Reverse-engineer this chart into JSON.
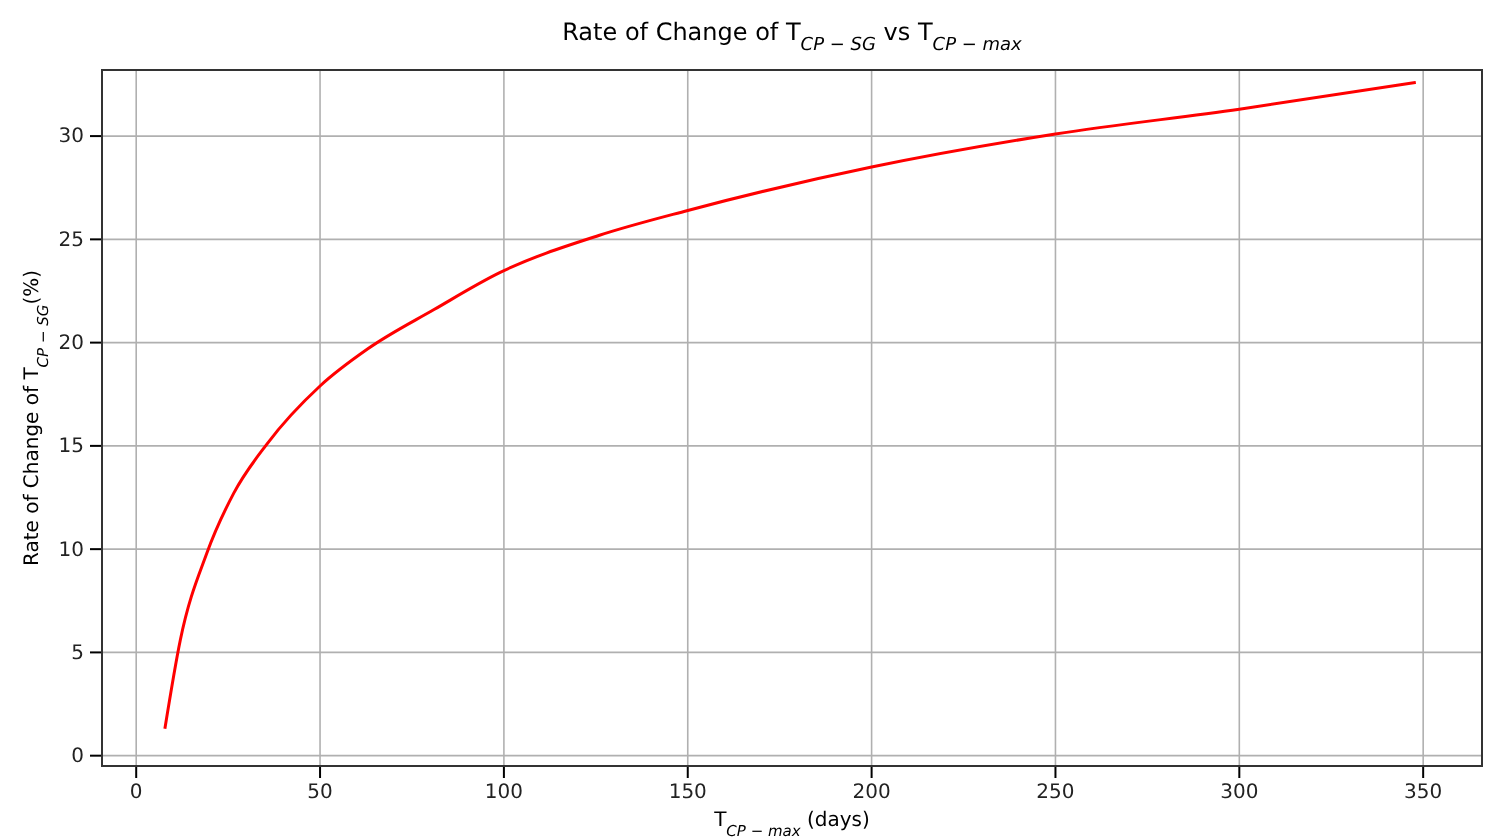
{
  "chart_data": {
    "type": "line",
    "title": "Rate of Change of T$_{CP − SG}$ vs T$_{CP − max}$",
    "xlabel": "T$_{CP − max}$ (days)",
    "ylabel": "Rate of Change of T$_{CP − SG}$(%)",
    "x": [
      7.8,
      12,
      19.2,
      26.5,
      35.6,
      50,
      63,
      81,
      99,
      126,
      150,
      200,
      250,
      300,
      348
    ],
    "series": [
      {
        "color": "#ff0000",
        "values": [
          1.3,
          5.6,
          9.8,
          12.7,
          15.1,
          17.9,
          19.7,
          21.6,
          23.4,
          25.2,
          26.4,
          28.5,
          30.1,
          31.3,
          32.6
        ]
      }
    ],
    "xlim": [
      -9.3,
      366
    ],
    "ylim": [
      -0.5,
      33.2
    ],
    "xticks": [
      0,
      50,
      100,
      150,
      200,
      250,
      300,
      350
    ],
    "yticks": [
      0,
      5,
      10,
      15,
      20,
      25,
      30
    ],
    "grid": true,
    "line_style": "solid",
    "marker": "none"
  }
}
